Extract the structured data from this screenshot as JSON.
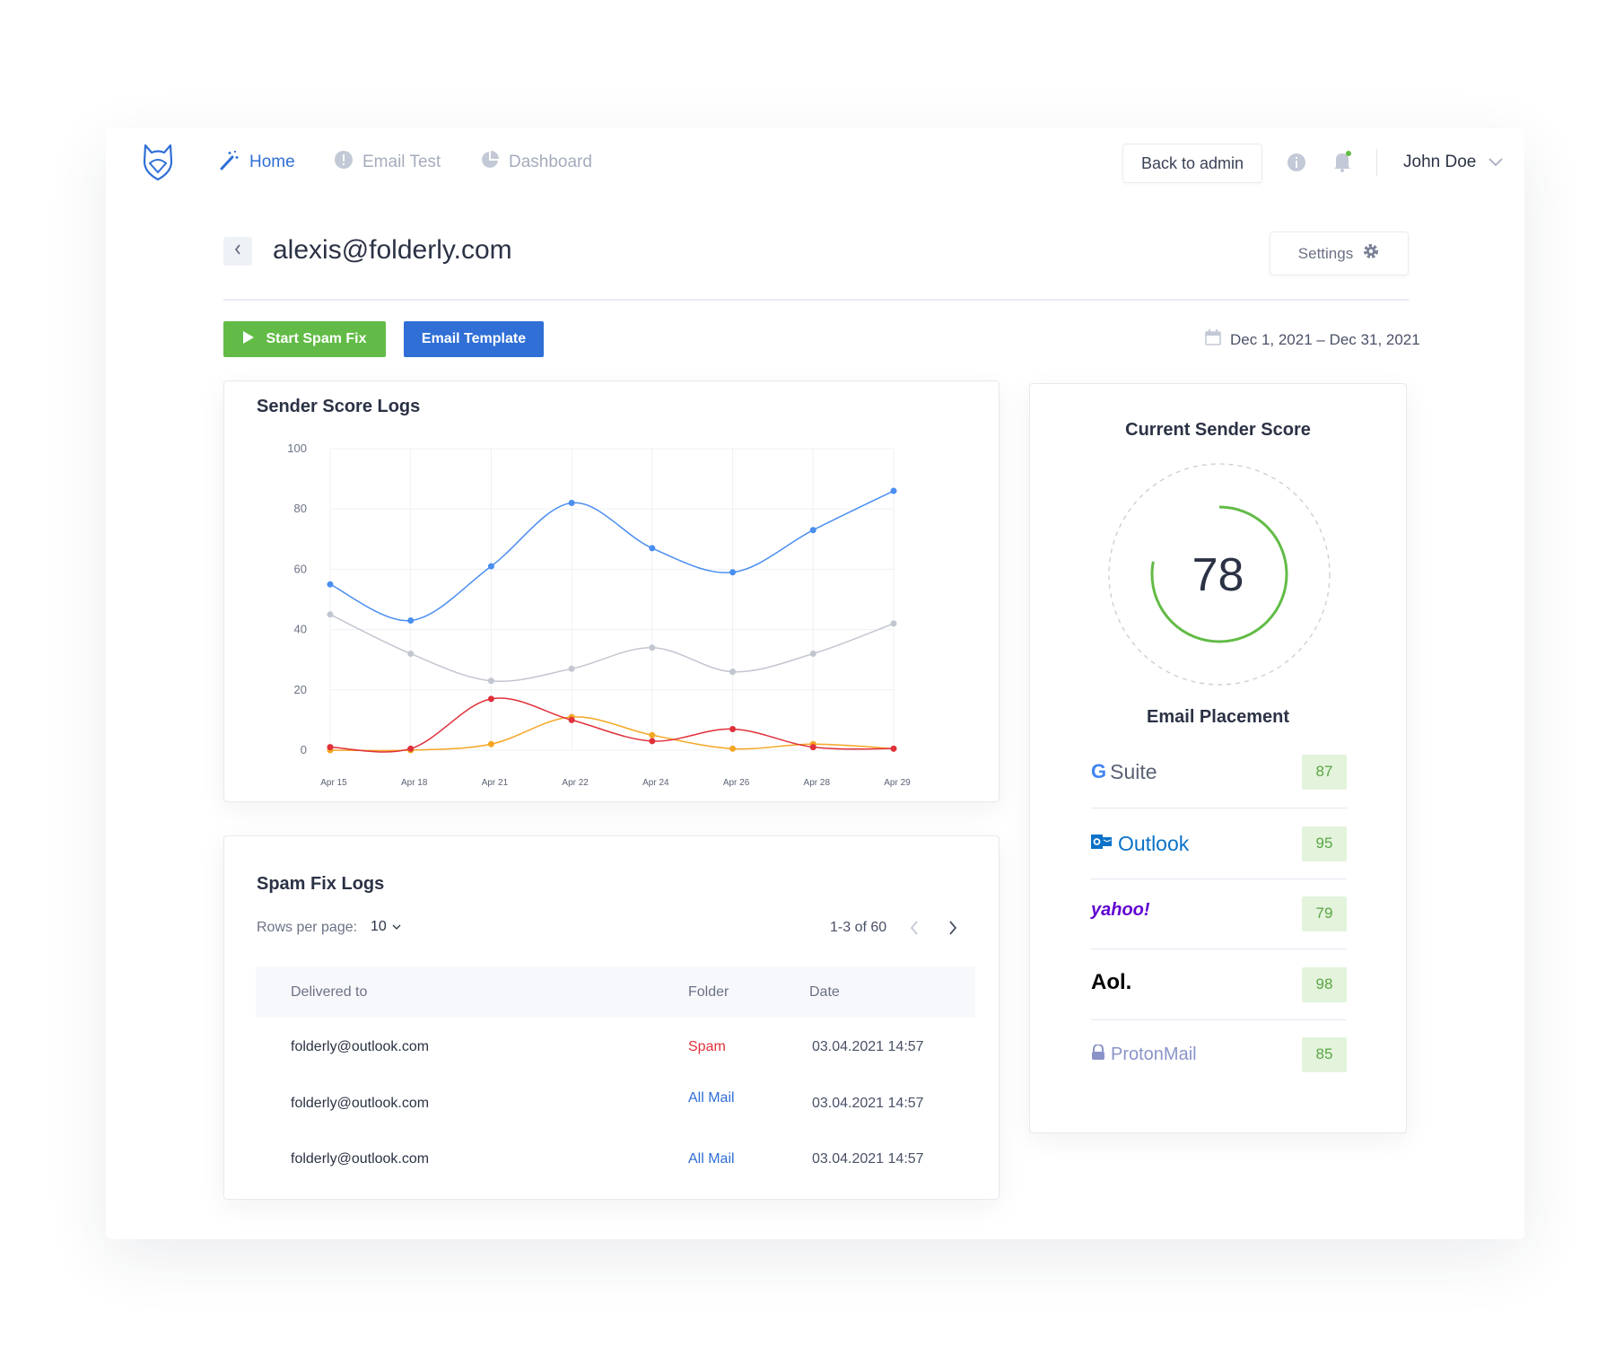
{
  "nav": {
    "home": "Home",
    "email_test": "Email Test",
    "dashboard": "Dashboard",
    "back_to_admin": "Back to admin",
    "user_name": "John Doe"
  },
  "header": {
    "title": "alexis@folderly.com",
    "settings": "Settings"
  },
  "actions": {
    "start_spam_fix": "Start Spam Fix",
    "email_template": "Email Template",
    "date_range": "Dec 1, 2021 – Dec 31, 2021"
  },
  "colors": {
    "primary": "#2f6fd6",
    "green": "#62bb46",
    "red": "#e0303a",
    "orange": "#f5a623",
    "gray": "#c2c6d0"
  },
  "chart_data": {
    "type": "line",
    "title": "Sender Score Logs",
    "categories": [
      "Apr 15",
      "Apr 18",
      "Apr 21",
      "Apr 22",
      "Apr 24",
      "Apr 26",
      "Apr 28",
      "Apr 29"
    ],
    "ylim": [
      0,
      100
    ],
    "yticks": [
      0,
      20,
      40,
      60,
      80,
      100
    ],
    "grid": true,
    "series": [
      {
        "name": "blue",
        "color": "#4a8ef0",
        "values": [
          55,
          43,
          61,
          82,
          67,
          59,
          73,
          86
        ]
      },
      {
        "name": "gray",
        "color": "#c2c6d0",
        "values": [
          45,
          32,
          23,
          27,
          34,
          26,
          32,
          42
        ]
      },
      {
        "name": "orange",
        "color": "#f5a623",
        "values": [
          0,
          0,
          2,
          11,
          5,
          0.5,
          2,
          0.5
        ]
      },
      {
        "name": "red",
        "color": "#e0303a",
        "values": [
          1,
          0.5,
          17,
          10,
          3,
          7,
          1,
          0.5
        ]
      }
    ]
  },
  "score": {
    "title": "Current Sender Score",
    "value": "78",
    "percent": 78,
    "placement_title": "Email Placement"
  },
  "placement": [
    {
      "name": "Suite",
      "score": "87"
    },
    {
      "name": "Outlook",
      "score": "95"
    },
    {
      "name": "yahoo!",
      "score": "79"
    },
    {
      "name": "Aol.",
      "score": "98"
    },
    {
      "name": "ProtonMail",
      "score": "85"
    }
  ],
  "logs": {
    "title": "Spam Fix Logs",
    "rows_per_page_label": "Rows per page:",
    "rows_per_page": "10",
    "pagination": "1-3 of 60",
    "columns": [
      "Delivered to",
      "Folder",
      "Date"
    ],
    "rows": [
      {
        "to": "folderly@outlook.com",
        "folder": "Spam",
        "date": "03.04.2021 14:57"
      },
      {
        "to": "folderly@outlook.com",
        "folder": "All Mail",
        "date": "03.04.2021 14:57"
      },
      {
        "to": "folderly@outlook.com",
        "folder": "All Mail",
        "date": "03.04.2021 14:57"
      }
    ]
  }
}
